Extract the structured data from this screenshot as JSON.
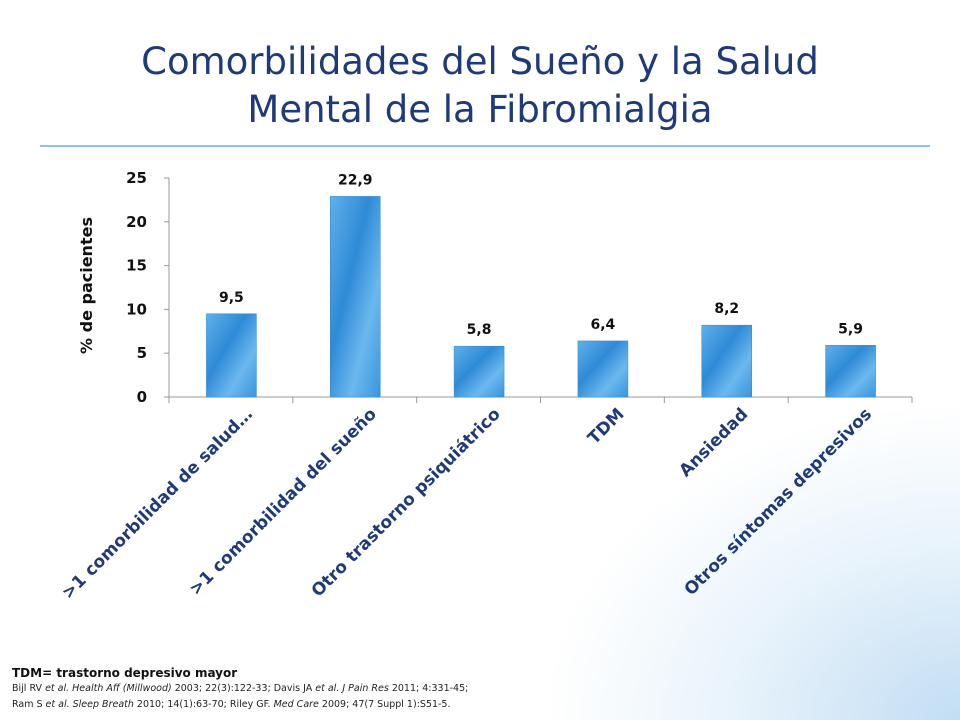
{
  "slide": {
    "title_line1": "Comorbilidades del Sueño y la Salud",
    "title_line2": "Mental de la Fibromialgia",
    "footnote": "TDM= trastorno depresivo mayor",
    "ref1": [
      {
        "t": "Bijl RV ",
        "i": false
      },
      {
        "t": "et al. Health Aff (Millwood)",
        "i": true
      },
      {
        "t": " 2003; 22(3):122-33; Davis JA ",
        "i": false
      },
      {
        "t": "et al. J Pain Res",
        "i": true
      },
      {
        "t": " 2011; 4:331-45;",
        "i": false
      }
    ],
    "ref2": [
      {
        "t": "Ram S ",
        "i": false
      },
      {
        "t": "et al. Sleep Breath",
        "i": true
      },
      {
        "t": " 2010; 14(1):63-70; Riley GF. ",
        "i": false
      },
      {
        "t": "Med Care",
        "i": true
      },
      {
        "t": " 2009; 47(7 Suppl 1):S51-5.",
        "i": false
      }
    ]
  },
  "chart_data": {
    "type": "bar",
    "title": "",
    "xlabel": "",
    "ylabel": "% de pacientes",
    "ylim": [
      0,
      25
    ],
    "yticks": [
      "0",
      "5",
      "10",
      "15",
      "20",
      "25"
    ],
    "categories": [
      ">1 comorbilidad de salud…",
      ">1 comorbilidad del sueño",
      "Otro trastorno psiquiátrico",
      "TDM",
      "Ansiedad",
      "Otros síntomas depresivos"
    ],
    "values": [
      9.5,
      22.9,
      5.8,
      6.4,
      8.2,
      5.9
    ],
    "data_labels": [
      "9,5",
      "22,9",
      "5,8",
      "6,4",
      "8,2",
      "5,9"
    ],
    "grid": false,
    "legend": "none",
    "bar_color": "#3d97dc"
  }
}
